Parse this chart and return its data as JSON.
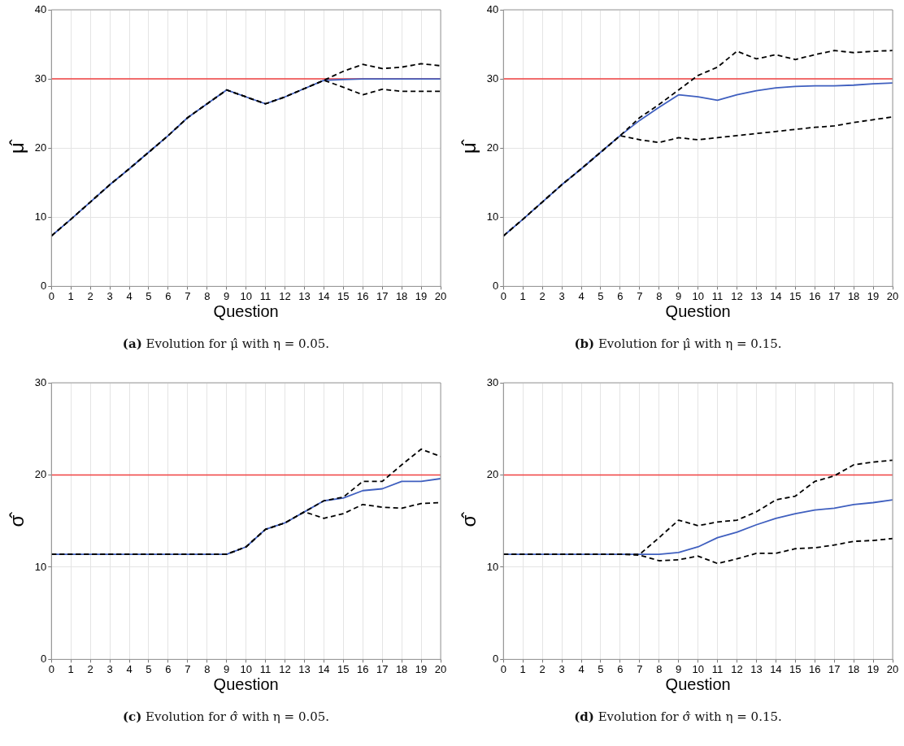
{
  "chart_data": [
    {
      "type": "line",
      "ylabel": "μ̂",
      "xlabel": "Question",
      "annotations": [
        "(a) Evolution for μ̂ with η = 0.05."
      ],
      "x": [
        0,
        1,
        2,
        3,
        4,
        5,
        6,
        7,
        8,
        9,
        10,
        11,
        12,
        13,
        14,
        15,
        16,
        17,
        18,
        19,
        20
      ],
      "xlim": [
        0,
        20
      ],
      "xticks": [
        0,
        1,
        2,
        3,
        4,
        5,
        6,
        7,
        8,
        9,
        10,
        11,
        12,
        13,
        14,
        15,
        16,
        17,
        18,
        19,
        20
      ],
      "ylim": [
        0,
        40
      ],
      "yticks": [
        0,
        10,
        20,
        30,
        40
      ],
      "grid": true,
      "legend": false,
      "marker": "none",
      "ref_lines": [
        {
          "axis": "y",
          "value": 30,
          "color": "#f04040"
        }
      ],
      "series": [
        {
          "color": "#3f5fbf",
          "line_style": "solid",
          "values": [
            7.3,
            9.7,
            12.2,
            14.7,
            17.0,
            19.4,
            21.8,
            24.4,
            26.4,
            28.4,
            27.4,
            26.4,
            27.4,
            28.6,
            29.8,
            29.9,
            30,
            30,
            30,
            30,
            30
          ]
        },
        {
          "color": "#000000",
          "line_style": "dashed",
          "values": [
            7.3,
            9.7,
            12.2,
            14.7,
            17.0,
            19.4,
            21.8,
            24.4,
            26.4,
            28.4,
            27.4,
            26.4,
            27.4,
            28.6,
            29.8,
            31.1,
            32.1,
            31.5,
            31.7,
            32.2,
            31.9
          ]
        },
        {
          "color": "#000000",
          "line_style": "dashed",
          "values": [
            7.3,
            9.7,
            12.2,
            14.7,
            17.0,
            19.4,
            21.8,
            24.4,
            26.4,
            28.4,
            27.4,
            26.4,
            27.4,
            28.6,
            29.8,
            28.8,
            27.7,
            28.5,
            28.2,
            28.2,
            28.2
          ]
        }
      ]
    },
    {
      "type": "line",
      "ylabel": "μ̂",
      "xlabel": "Question",
      "annotations": [
        "(b) Evolution for μ̂ with η = 0.15."
      ],
      "x": [
        0,
        1,
        2,
        3,
        4,
        5,
        6,
        7,
        8,
        9,
        10,
        11,
        12,
        13,
        14,
        15,
        16,
        17,
        18,
        19,
        20
      ],
      "xlim": [
        0,
        20
      ],
      "xticks": [
        0,
        1,
        2,
        3,
        4,
        5,
        6,
        7,
        8,
        9,
        10,
        11,
        12,
        13,
        14,
        15,
        16,
        17,
        18,
        19,
        20
      ],
      "ylim": [
        0,
        40
      ],
      "yticks": [
        0,
        10,
        20,
        30,
        40
      ],
      "grid": true,
      "legend": false,
      "marker": "none",
      "ref_lines": [
        {
          "axis": "y",
          "value": 30,
          "color": "#f04040"
        }
      ],
      "series": [
        {
          "color": "#3f5fbf",
          "line_style": "solid",
          "values": [
            7.3,
            9.7,
            12.2,
            14.7,
            17.0,
            19.4,
            21.8,
            24.0,
            25.9,
            27.7,
            27.4,
            26.9,
            27.7,
            28.3,
            28.7,
            28.9,
            29.0,
            29.0,
            29.1,
            29.3,
            29.4
          ]
        },
        {
          "color": "#000000",
          "line_style": "dashed",
          "values": [
            7.3,
            9.7,
            12.2,
            14.7,
            17.0,
            19.4,
            21.8,
            24.4,
            26.3,
            28.4,
            30.5,
            31.7,
            34.0,
            32.9,
            33.5,
            32.8,
            33.5,
            34.1,
            33.8,
            34.0,
            34.1
          ]
        },
        {
          "color": "#000000",
          "line_style": "dashed",
          "values": [
            7.3,
            9.7,
            12.2,
            14.7,
            17.0,
            19.4,
            21.8,
            21.2,
            20.8,
            21.5,
            21.2,
            21.5,
            21.8,
            22.1,
            22.4,
            22.7,
            23.0,
            23.2,
            23.7,
            24.1,
            24.5
          ]
        }
      ]
    },
    {
      "type": "line",
      "ylabel": "σ̂",
      "xlabel": "Question",
      "annotations": [
        "(c) Evolution for σ̂ with η = 0.05."
      ],
      "x": [
        0,
        1,
        2,
        3,
        4,
        5,
        6,
        7,
        8,
        9,
        10,
        11,
        12,
        13,
        14,
        15,
        16,
        17,
        18,
        19,
        20
      ],
      "xlim": [
        0,
        20
      ],
      "xticks": [
        0,
        1,
        2,
        3,
        4,
        5,
        6,
        7,
        8,
        9,
        10,
        11,
        12,
        13,
        14,
        15,
        16,
        17,
        18,
        19,
        20
      ],
      "ylim": [
        0,
        30
      ],
      "yticks": [
        0,
        10,
        20,
        30
      ],
      "grid": true,
      "legend": false,
      "marker": "none",
      "ref_lines": [
        {
          "axis": "y",
          "value": 20,
          "color": "#f04040"
        }
      ],
      "series": [
        {
          "color": "#3f5fbf",
          "line_style": "solid",
          "values": [
            11.4,
            11.4,
            11.4,
            11.4,
            11.4,
            11.4,
            11.4,
            11.4,
            11.4,
            11.4,
            12.2,
            14.1,
            14.8,
            16.0,
            17.2,
            17.5,
            18.3,
            18.5,
            19.3,
            19.3,
            19.6
          ]
        },
        {
          "color": "#000000",
          "line_style": "dashed",
          "values": [
            11.4,
            11.4,
            11.4,
            11.4,
            11.4,
            11.4,
            11.4,
            11.4,
            11.4,
            11.4,
            12.2,
            14.1,
            14.8,
            16.0,
            17.2,
            17.6,
            19.3,
            19.3,
            21.1,
            22.8,
            22.0
          ]
        },
        {
          "color": "#000000",
          "line_style": "dashed",
          "values": [
            11.4,
            11.4,
            11.4,
            11.4,
            11.4,
            11.4,
            11.4,
            11.4,
            11.4,
            11.4,
            12.2,
            14.1,
            14.8,
            16.0,
            15.3,
            15.8,
            16.8,
            16.5,
            16.4,
            16.9,
            17.0
          ]
        }
      ]
    },
    {
      "type": "line",
      "ylabel": "σ̂",
      "xlabel": "Question",
      "annotations": [
        "(d) Evolution for σ̂ with η = 0.15."
      ],
      "x": [
        0,
        1,
        2,
        3,
        4,
        5,
        6,
        7,
        8,
        9,
        10,
        11,
        12,
        13,
        14,
        15,
        16,
        17,
        18,
        19,
        20
      ],
      "xlim": [
        0,
        20
      ],
      "xticks": [
        0,
        1,
        2,
        3,
        4,
        5,
        6,
        7,
        8,
        9,
        10,
        11,
        12,
        13,
        14,
        15,
        16,
        17,
        18,
        19,
        20
      ],
      "ylim": [
        0,
        30
      ],
      "yticks": [
        0,
        10,
        20,
        30
      ],
      "grid": true,
      "legend": false,
      "marker": "none",
      "ref_lines": [
        {
          "axis": "y",
          "value": 20,
          "color": "#f04040"
        }
      ],
      "series": [
        {
          "color": "#3f5fbf",
          "line_style": "solid",
          "values": [
            11.4,
            11.4,
            11.4,
            11.4,
            11.4,
            11.4,
            11.4,
            11.4,
            11.4,
            11.6,
            12.2,
            13.2,
            13.8,
            14.6,
            15.3,
            15.8,
            16.2,
            16.4,
            16.8,
            17.0,
            17.3
          ]
        },
        {
          "color": "#000000",
          "line_style": "dashed",
          "values": [
            11.4,
            11.4,
            11.4,
            11.4,
            11.4,
            11.4,
            11.4,
            11.4,
            13.2,
            15.1,
            14.5,
            14.9,
            15.1,
            16.0,
            17.3,
            17.7,
            19.3,
            19.9,
            21.1,
            21.4,
            21.6
          ]
        },
        {
          "color": "#000000",
          "line_style": "dashed",
          "values": [
            11.4,
            11.4,
            11.4,
            11.4,
            11.4,
            11.4,
            11.4,
            11.3,
            10.7,
            10.8,
            11.2,
            10.4,
            10.9,
            11.5,
            11.5,
            12.0,
            12.1,
            12.4,
            12.8,
            12.9,
            13.1
          ]
        }
      ]
    }
  ]
}
